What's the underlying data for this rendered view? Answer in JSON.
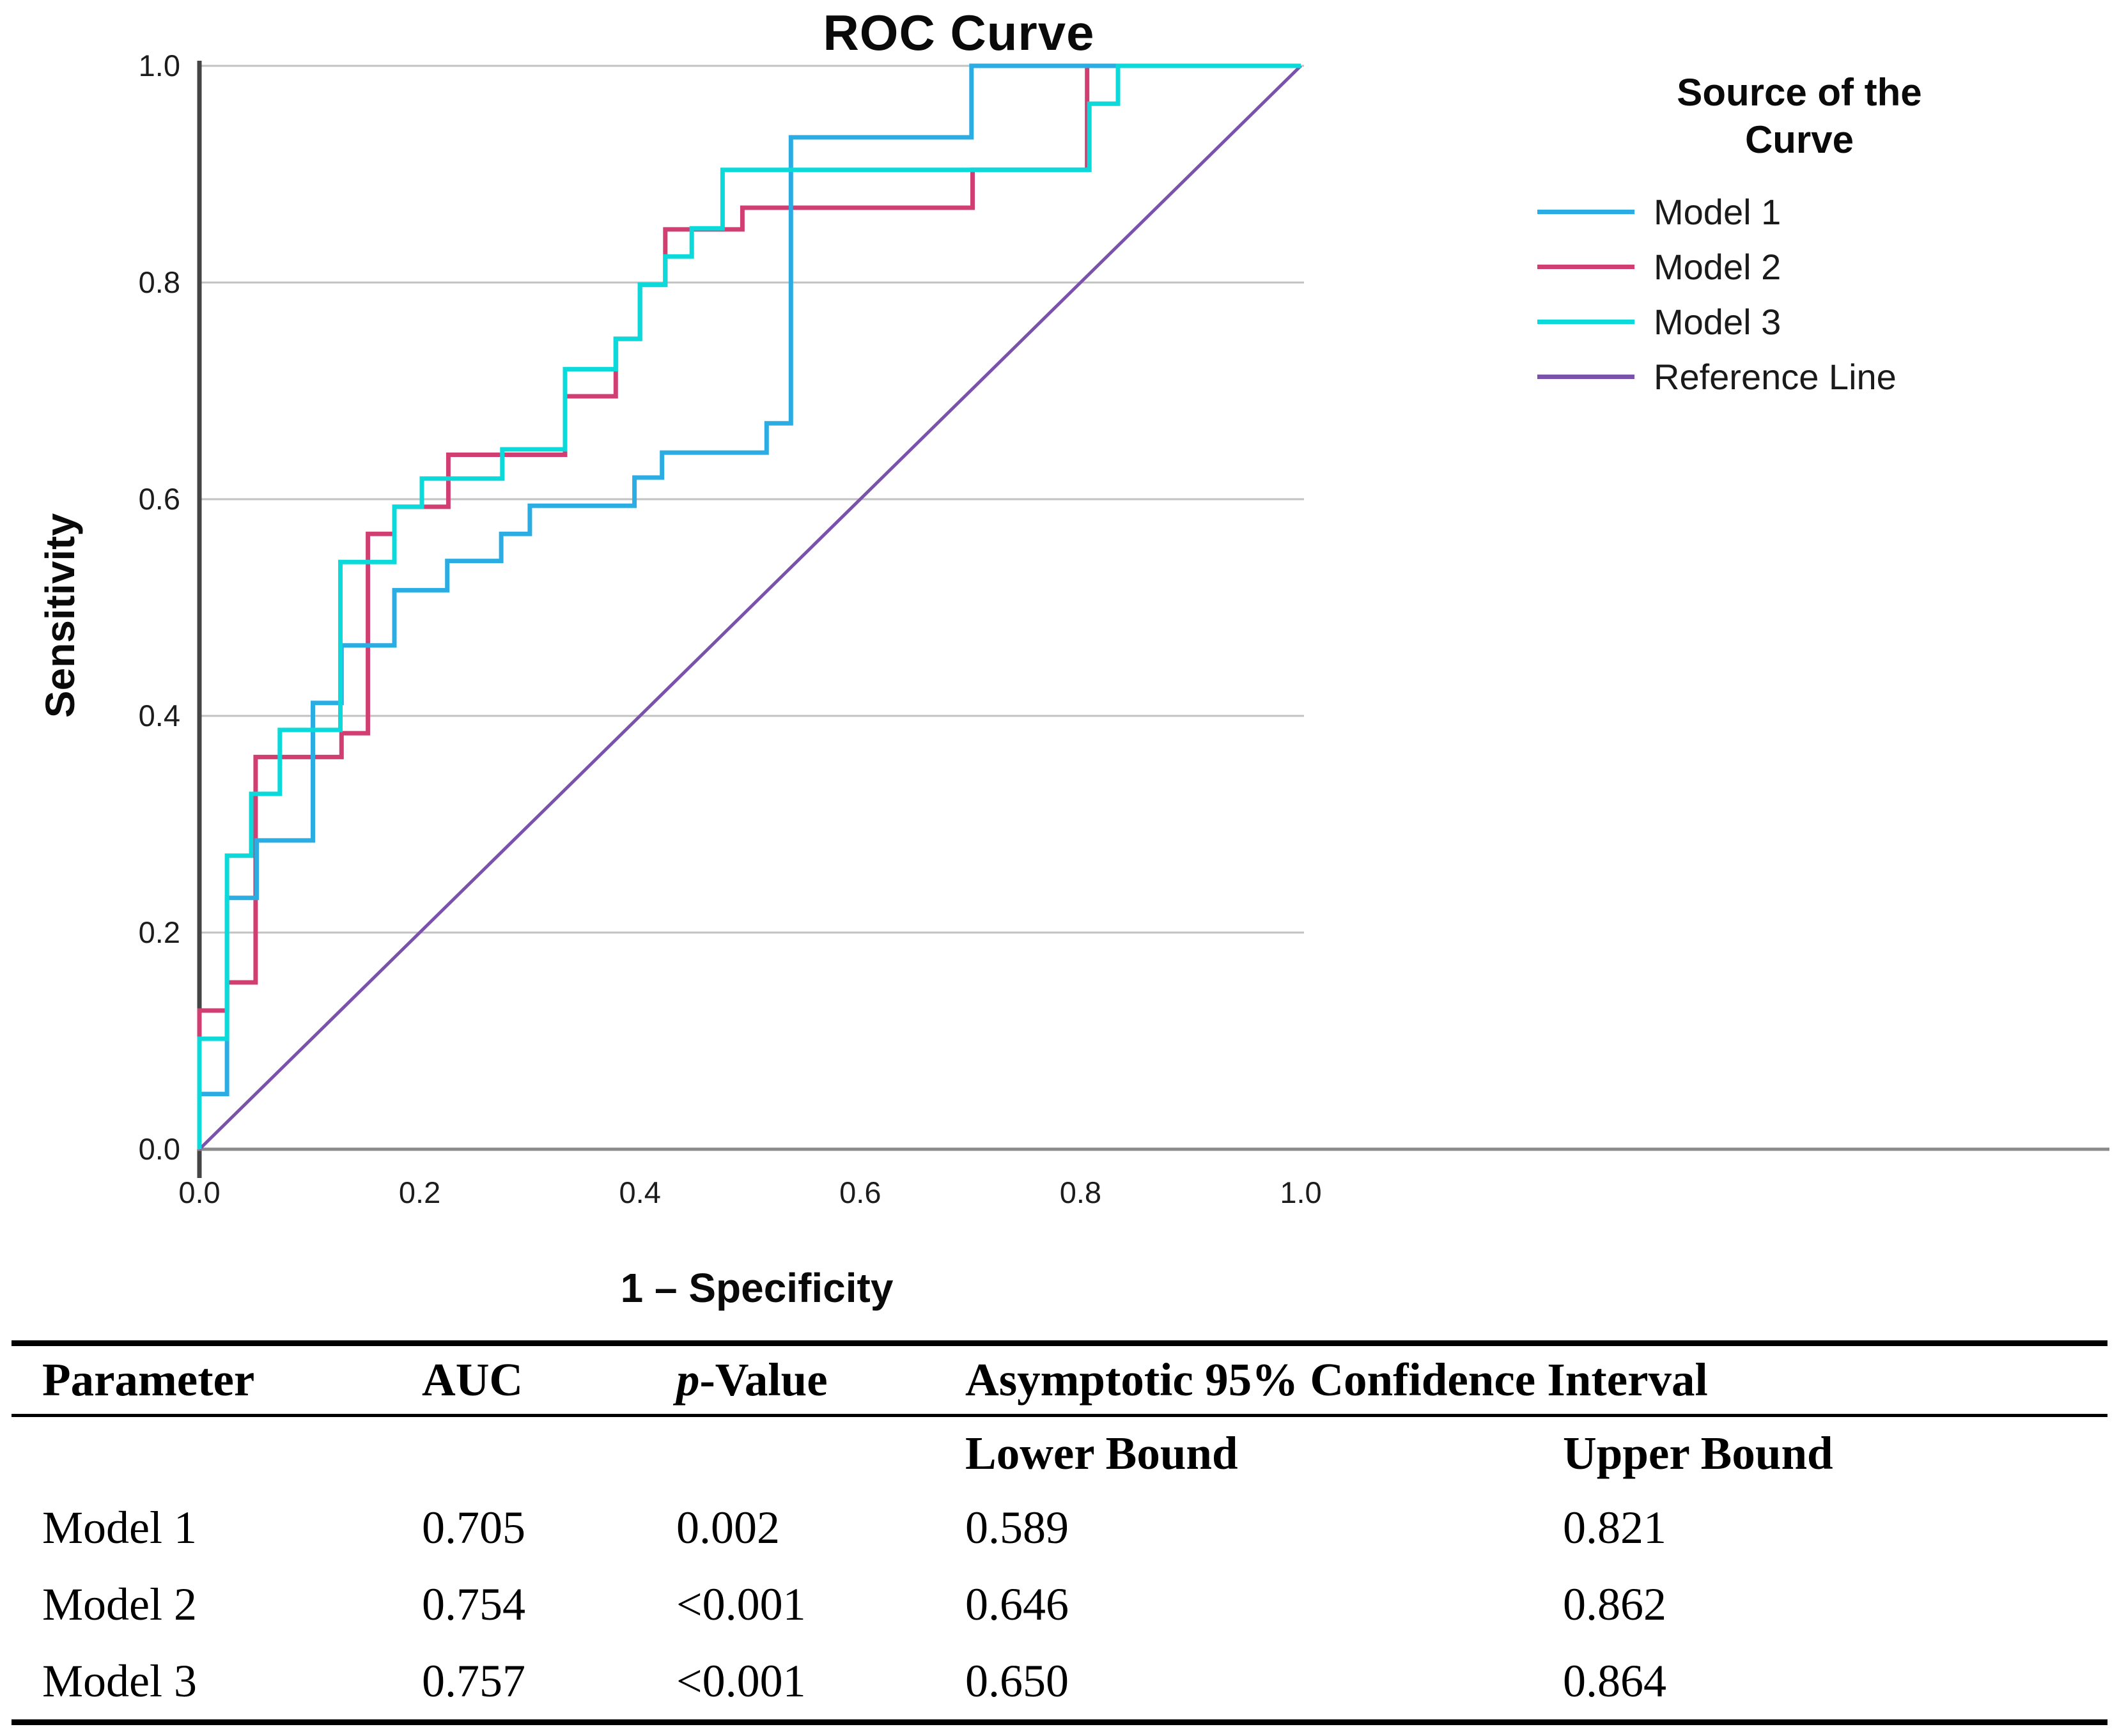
{
  "chart_data": {
    "type": "line",
    "subtype": "roc_step_curves",
    "title": "ROC Curve",
    "xlabel": "1 – Specificity",
    "ylabel": "Sensitivity",
    "xlim": [
      0.0,
      1.0
    ],
    "ylim": [
      0.0,
      1.0
    ],
    "x_ticks": [
      "0.0",
      "0.2",
      "0.4",
      "0.6",
      "0.8",
      "1.0"
    ],
    "y_ticks": [
      "0.0",
      "0.2",
      "0.4",
      "0.6",
      "0.8",
      "1.0"
    ],
    "grid": "horizontal-only",
    "legend": {
      "title_lines": [
        "Source of the",
        "Curve"
      ],
      "position": "right"
    },
    "series": [
      {
        "name": "Model 1",
        "color": "#2BACE2",
        "points": [
          [
            0,
            0
          ],
          [
            0,
            0.051
          ],
          [
            0.025,
            0.051
          ],
          [
            0.025,
            0.232
          ],
          [
            0.052,
            0.232
          ],
          [
            0.052,
            0.285
          ],
          [
            0.103,
            0.285
          ],
          [
            0.103,
            0.412
          ],
          [
            0.129,
            0.412
          ],
          [
            0.129,
            0.465
          ],
          [
            0.177,
            0.465
          ],
          [
            0.177,
            0.516
          ],
          [
            0.225,
            0.516
          ],
          [
            0.225,
            0.543
          ],
          [
            0.274,
            0.543
          ],
          [
            0.274,
            0.568
          ],
          [
            0.3,
            0.568
          ],
          [
            0.3,
            0.594
          ],
          [
            0.395,
            0.594
          ],
          [
            0.395,
            0.62
          ],
          [
            0.42,
            0.62
          ],
          [
            0.42,
            0.643
          ],
          [
            0.515,
            0.643
          ],
          [
            0.515,
            0.67
          ],
          [
            0.537,
            0.67
          ],
          [
            0.537,
            0.934
          ],
          [
            0.701,
            0.934
          ],
          [
            0.701,
            1
          ],
          [
            1,
            1
          ]
        ]
      },
      {
        "name": "Model 2",
        "color": "#D13F72",
        "points": [
          [
            0,
            0
          ],
          [
            0,
            0.128
          ],
          [
            0.025,
            0.128
          ],
          [
            0.025,
            0.154
          ],
          [
            0.051,
            0.154
          ],
          [
            0.051,
            0.362
          ],
          [
            0.129,
            0.362
          ],
          [
            0.129,
            0.384
          ],
          [
            0.153,
            0.384
          ],
          [
            0.153,
            0.568
          ],
          [
            0.177,
            0.568
          ],
          [
            0.177,
            0.593
          ],
          [
            0.226,
            0.593
          ],
          [
            0.226,
            0.641
          ],
          [
            0.332,
            0.641
          ],
          [
            0.332,
            0.695
          ],
          [
            0.378,
            0.695
          ],
          [
            0.378,
            0.748
          ],
          [
            0.4,
            0.748
          ],
          [
            0.4,
            0.798
          ],
          [
            0.423,
            0.798
          ],
          [
            0.423,
            0.849
          ],
          [
            0.493,
            0.849
          ],
          [
            0.493,
            0.869
          ],
          [
            0.702,
            0.869
          ],
          [
            0.702,
            0.904
          ],
          [
            0.806,
            0.904
          ],
          [
            0.806,
            1
          ],
          [
            1,
            1
          ]
        ]
      },
      {
        "name": "Model 3",
        "color": "#0CD9D9",
        "points": [
          [
            0,
            0
          ],
          [
            0,
            0.102
          ],
          [
            0.025,
            0.102
          ],
          [
            0.025,
            0.271
          ],
          [
            0.047,
            0.271
          ],
          [
            0.047,
            0.328
          ],
          [
            0.073,
            0.328
          ],
          [
            0.073,
            0.387
          ],
          [
            0.128,
            0.387
          ],
          [
            0.128,
            0.542
          ],
          [
            0.177,
            0.542
          ],
          [
            0.177,
            0.593
          ],
          [
            0.202,
            0.593
          ],
          [
            0.202,
            0.619
          ],
          [
            0.275,
            0.619
          ],
          [
            0.275,
            0.646
          ],
          [
            0.332,
            0.646
          ],
          [
            0.332,
            0.72
          ],
          [
            0.378,
            0.72
          ],
          [
            0.378,
            0.748
          ],
          [
            0.4,
            0.748
          ],
          [
            0.4,
            0.798
          ],
          [
            0.423,
            0.798
          ],
          [
            0.423,
            0.824
          ],
          [
            0.447,
            0.824
          ],
          [
            0.447,
            0.85
          ],
          [
            0.475,
            0.85
          ],
          [
            0.475,
            0.904
          ],
          [
            0.808,
            0.904
          ],
          [
            0.808,
            0.965
          ],
          [
            0.834,
            0.965
          ],
          [
            0.834,
            1
          ],
          [
            1,
            1
          ]
        ]
      },
      {
        "name": "Reference Line",
        "color": "#7A52AC",
        "points": [
          [
            0,
            0
          ],
          [
            1,
            1
          ]
        ]
      }
    ]
  },
  "table": {
    "col_headers": [
      "Parameter",
      "AUC",
      "p-Value",
      "Asymptotic 95% Confidence Interval"
    ],
    "sub_headers": [
      "Lower Bound",
      "Upper Bound"
    ],
    "rows": [
      [
        "Model 1",
        "0.705",
        "0.002",
        "0.589",
        "0.821"
      ],
      [
        "Model 2",
        "0.754",
        "<0.001",
        "0.646",
        "0.862"
      ],
      [
        "Model 3",
        "0.757",
        "<0.001",
        "0.650",
        "0.864"
      ]
    ]
  },
  "colors": {
    "gridline": "#C2C2C2",
    "axis_left": "#454545",
    "axis_bottom": "#8A8A8A",
    "table_rule": "#000000",
    "background": "#FFFFFF"
  }
}
